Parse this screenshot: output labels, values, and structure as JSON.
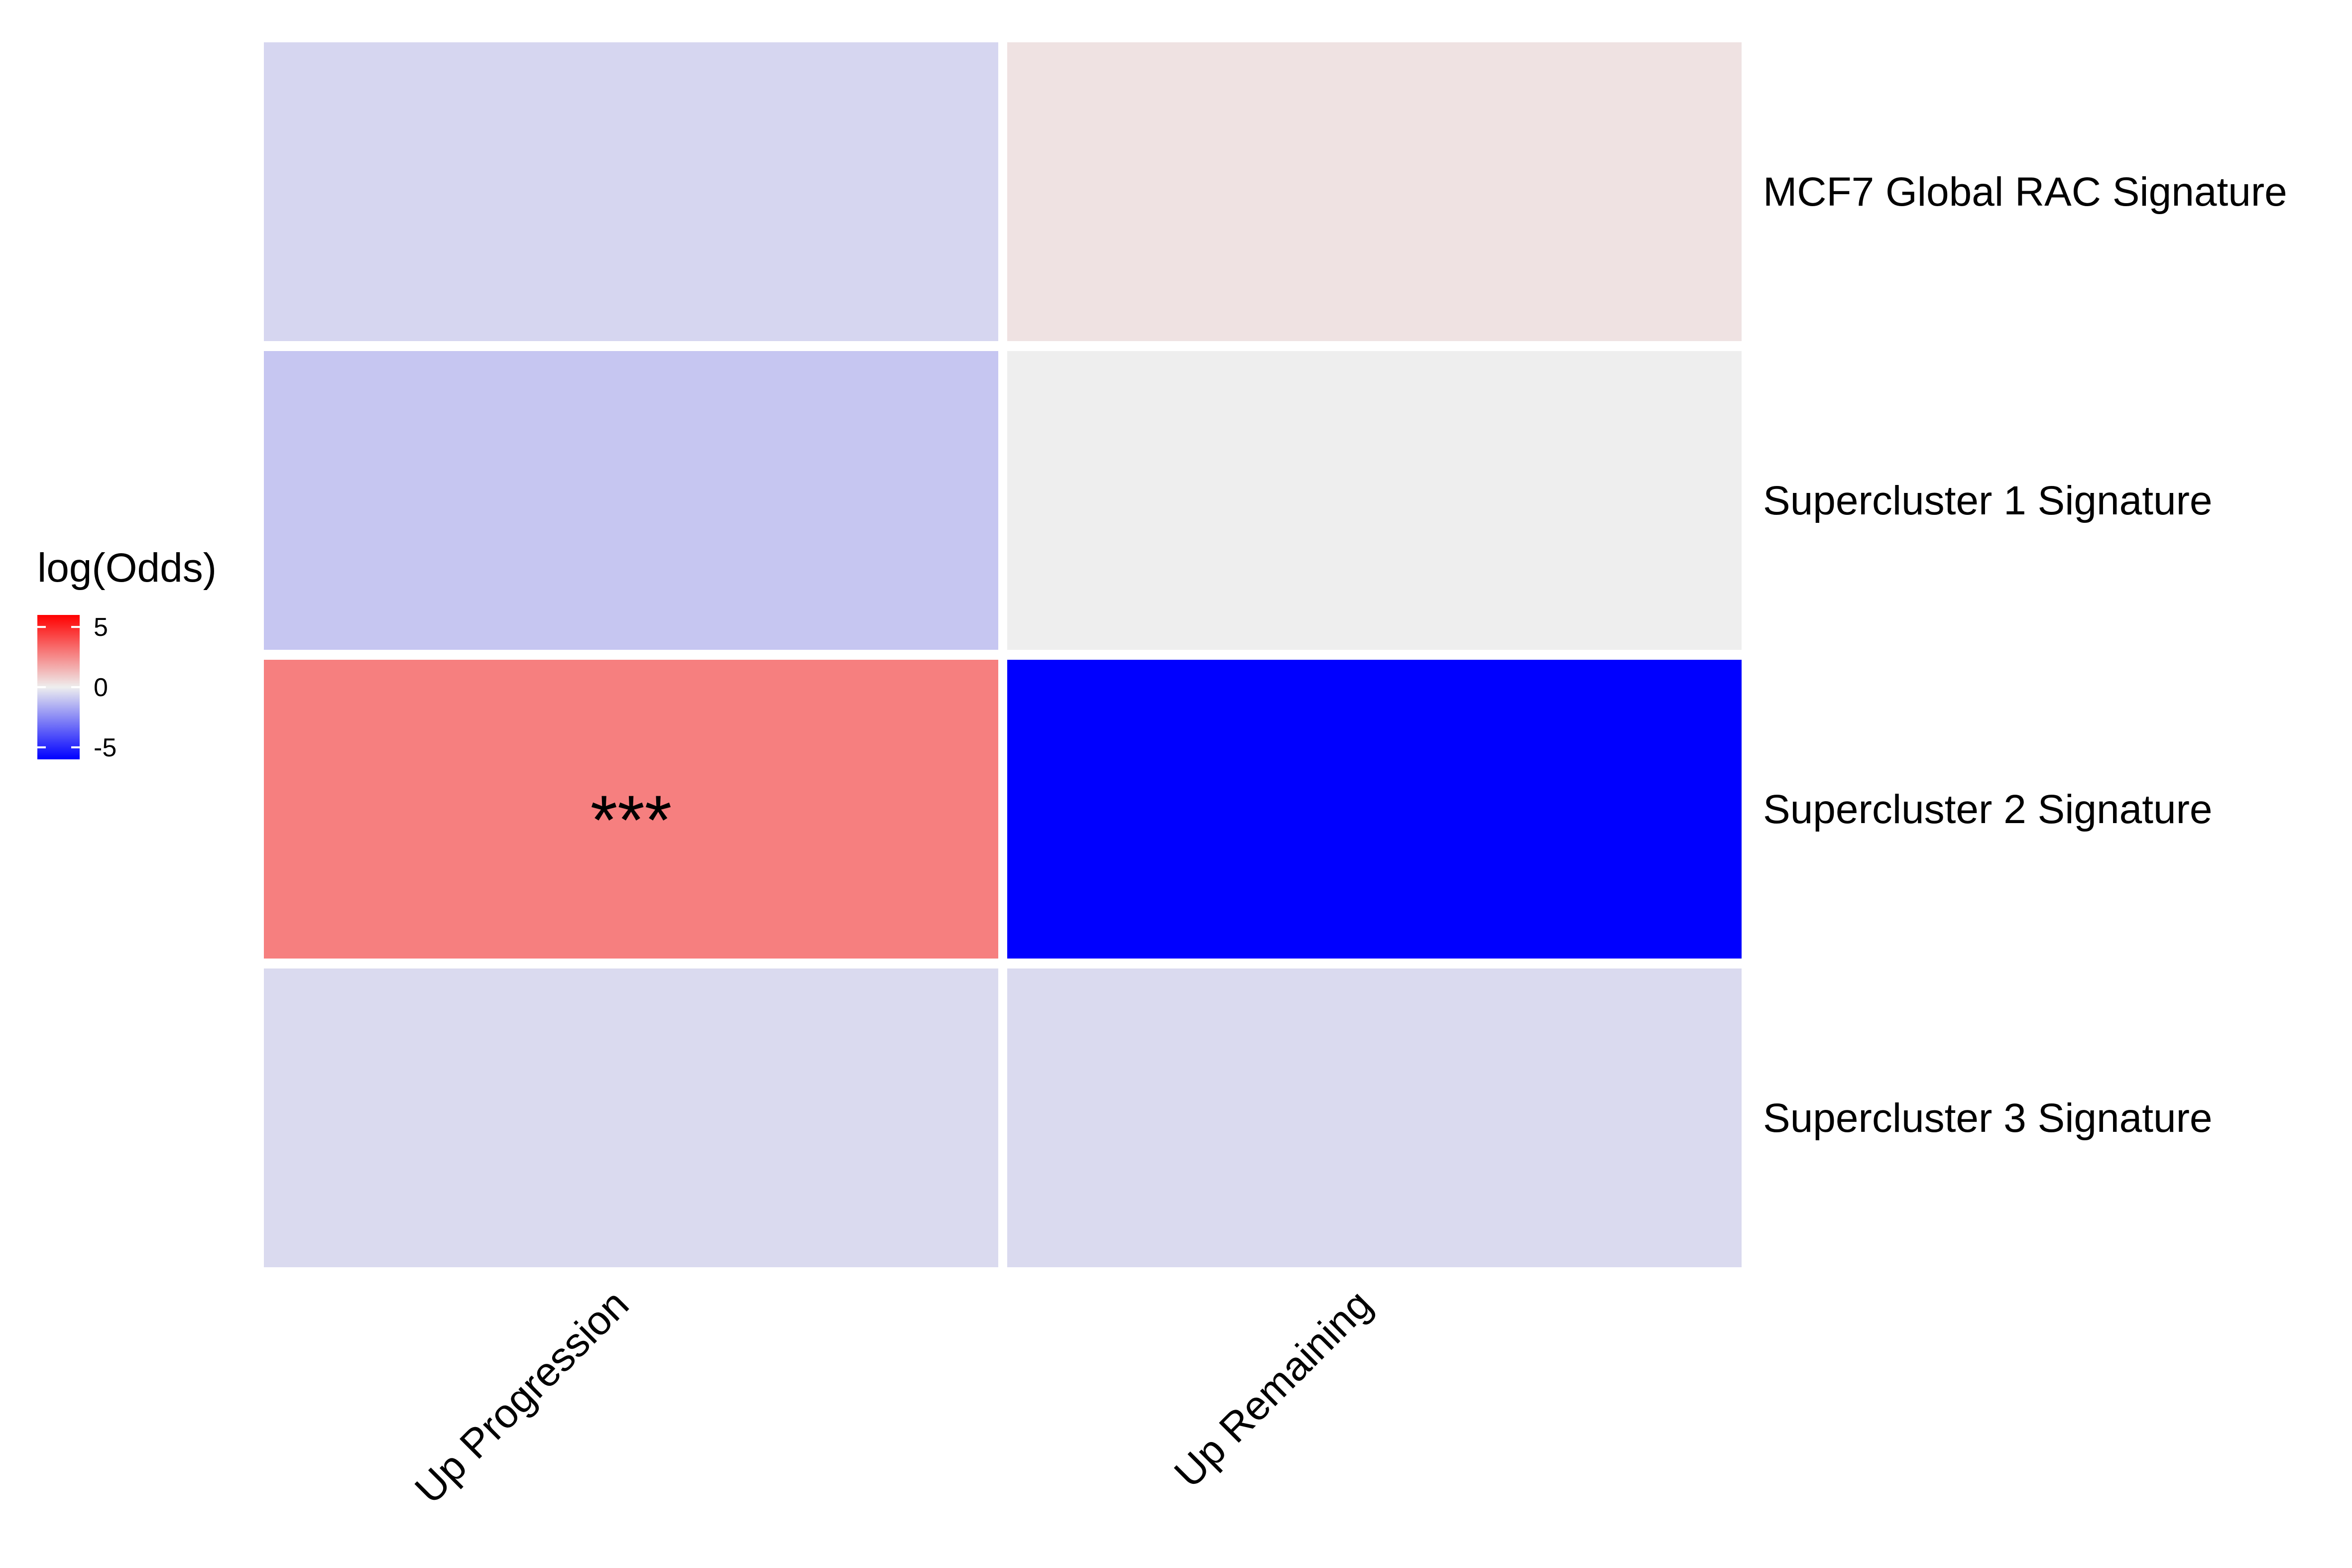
{
  "chart_data": {
    "type": "heatmap",
    "title": "",
    "xlabel": "",
    "ylabel": "",
    "x_categories": [
      "Up Progression",
      "Up Remaining"
    ],
    "y_categories": [
      "MCF7 Global RAC Signature",
      "Supercluster 1 Signature",
      "Supercluster 2 Signature",
      "Supercluster 3 Signature"
    ],
    "cells": [
      {
        "x": "Up Progression",
        "y": "MCF7 Global RAC Signature",
        "value": -0.6,
        "label": ""
      },
      {
        "x": "Up Remaining",
        "y": "MCF7 Global RAC Signature",
        "value": 0.3,
        "label": ""
      },
      {
        "x": "Up Progression",
        "y": "Supercluster 1 Signature",
        "value": -1.0,
        "label": ""
      },
      {
        "x": "Up Remaining",
        "y": "Supercluster 1 Signature",
        "value": 0.0,
        "label": ""
      },
      {
        "x": "Up Progression",
        "y": "Supercluster 2 Signature",
        "value": 2.8,
        "label": "***"
      },
      {
        "x": "Up Remaining",
        "y": "Supercluster 2 Signature",
        "value": -6.0,
        "label": ""
      },
      {
        "x": "Up Progression",
        "y": "Supercluster 3 Signature",
        "value": -0.5,
        "label": ""
      },
      {
        "x": "Up Remaining",
        "y": "Supercluster 3 Signature",
        "value": -0.5,
        "label": ""
      }
    ],
    "legend": {
      "title": "log(Odds)",
      "placement": "left",
      "range": [
        -6,
        6
      ],
      "ticks": [
        {
          "value": 5,
          "label": "5"
        },
        {
          "value": 0,
          "label": "0"
        },
        {
          "value": -5,
          "label": "-5"
        }
      ],
      "colors": {
        "low": "#0000ff",
        "mid": "#eeeeee",
        "high": "#ff0000"
      }
    },
    "grid": false
  }
}
